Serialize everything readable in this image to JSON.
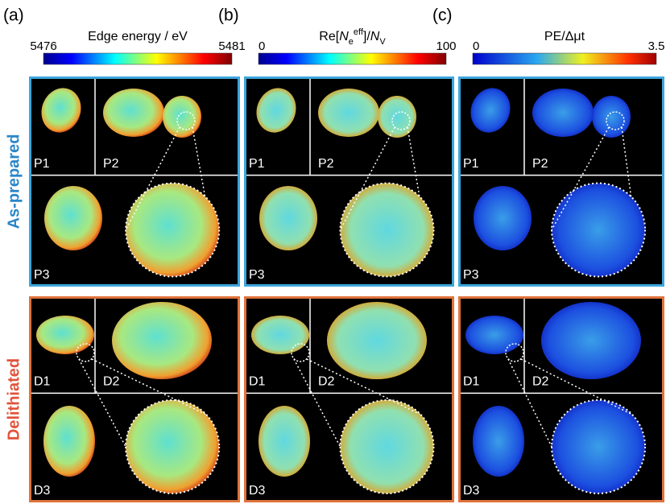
{
  "panels": [
    {
      "label": "(a)",
      "colorbar": {
        "title": "Edge energy / eV",
        "min": 5476,
        "max": 5481
      }
    },
    {
      "label": "(b)",
      "colorbar": {
        "title_parts": [
          "Re[",
          "N",
          "e",
          "eff",
          "]/",
          "N",
          "V"
        ],
        "min": 0,
        "max": 100
      }
    },
    {
      "label": "(c)",
      "colorbar": {
        "title": "PE/Δμt",
        "min": 0,
        "max": 3.5
      }
    }
  ],
  "rows": [
    {
      "label": "As-prepared",
      "particles": [
        "P1",
        "P2",
        "P3"
      ]
    },
    {
      "label": "Delithiated",
      "particles": [
        "D1",
        "D2",
        "D3"
      ]
    }
  ]
}
